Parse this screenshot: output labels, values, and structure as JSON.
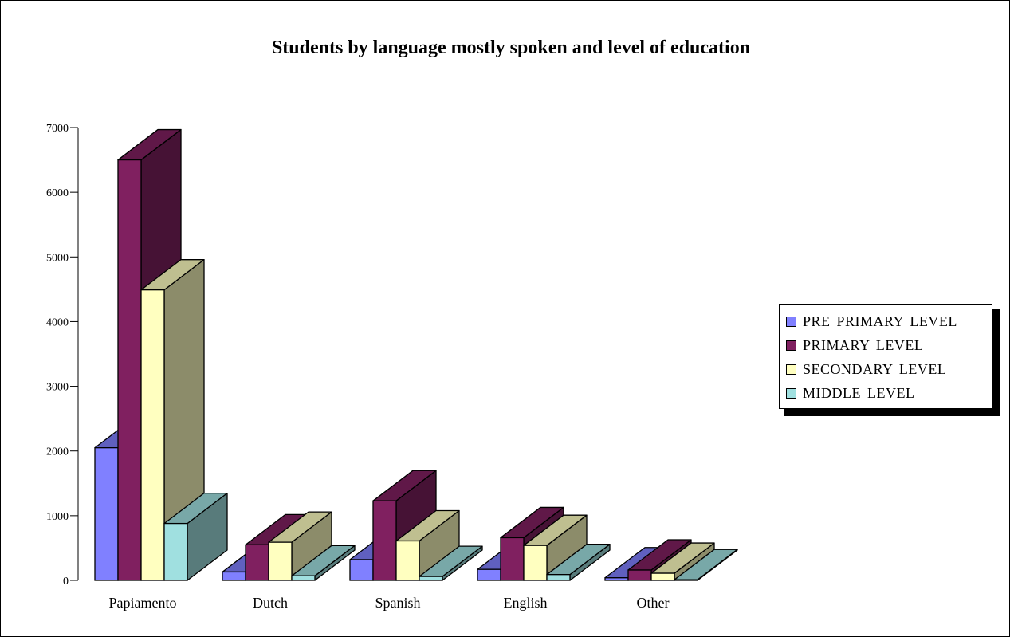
{
  "chart_data": {
    "type": "bar",
    "title": "Students by language mostly spoken and level of education",
    "xlabel": "",
    "ylabel": "",
    "categories": [
      "Papiamento",
      "Dutch",
      "Spanish",
      "English",
      "Other"
    ],
    "series": [
      {
        "name": "PRE PRIMARY LEVEL",
        "color": "#8080ff",
        "values": [
          2050,
          130,
          320,
          170,
          40
        ]
      },
      {
        "name": "PRIMARY LEVEL",
        "color": "#802060",
        "values": [
          6500,
          550,
          1230,
          660,
          160
        ]
      },
      {
        "name": "SECONDARY LEVEL",
        "color": "#ffffc0",
        "values": [
          4490,
          590,
          610,
          540,
          110
        ]
      },
      {
        "name": "MIDDLE LEVEL",
        "color": "#a0e0e0",
        "values": [
          880,
          70,
          60,
          90,
          10
        ]
      }
    ],
    "yticks": [
      "0",
      "1000",
      "2000",
      "3000",
      "4000",
      "5000",
      "6000",
      "7000"
    ],
    "ylim": [
      0,
      7000
    ],
    "grid": false,
    "legend_position": "right"
  }
}
